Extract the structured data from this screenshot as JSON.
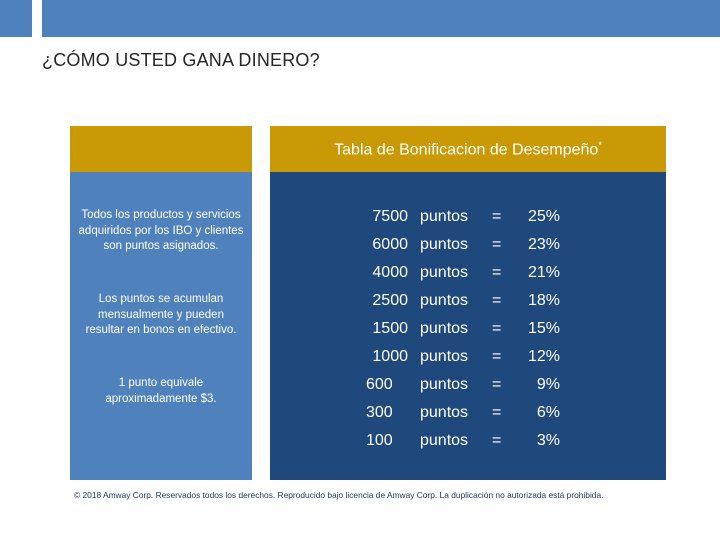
{
  "title": "¿CÓMO USTED GANA DINERO?",
  "table": {
    "title": "Tabla de Bonificacion de Desempeño",
    "title_mark": "*",
    "rows": [
      {
        "points": "7500",
        "unit": "puntos",
        "equals": "=",
        "percent": "25%"
      },
      {
        "points": "6000",
        "unit": "puntos",
        "equals": "=",
        "percent": "23%"
      },
      {
        "points": "4000",
        "unit": "puntos",
        "equals": "=",
        "percent": "21%"
      },
      {
        "points": "2500",
        "unit": "puntos",
        "equals": "=",
        "percent": "18%"
      },
      {
        "points": "1500",
        "unit": "puntos",
        "equals": "=",
        "percent": "15%"
      },
      {
        "points": "1000",
        "unit": "puntos",
        "equals": "=",
        "percent": "12%"
      },
      {
        "points": "600",
        "unit": "puntos",
        "equals": "=",
        "percent": "9%"
      },
      {
        "points": "300",
        "unit": "puntos",
        "equals": "=",
        "percent": "6%"
      },
      {
        "points": "100",
        "unit": "puntos",
        "equals": "=",
        "percent": "3%"
      }
    ]
  },
  "sidebar": {
    "paragraphs": [
      "Todos los productos y servicios adquiridos por los IBO y clientes son puntos asignados.",
      "Los puntos se acumulan mensualmente y pueden resultar en bonos en efectivo.",
      "1 punto equivale aproximadamente $3."
    ]
  },
  "footer": "© 2018 Amway Corp. Reservados todos los derechos. Reproducido bajo licencia de Amway Corp. La duplicación no autorizada está prohibida.",
  "colors": {
    "accent_blue": "#4f81bd",
    "dark_blue": "#1f497d",
    "gold": "#c99a06"
  }
}
